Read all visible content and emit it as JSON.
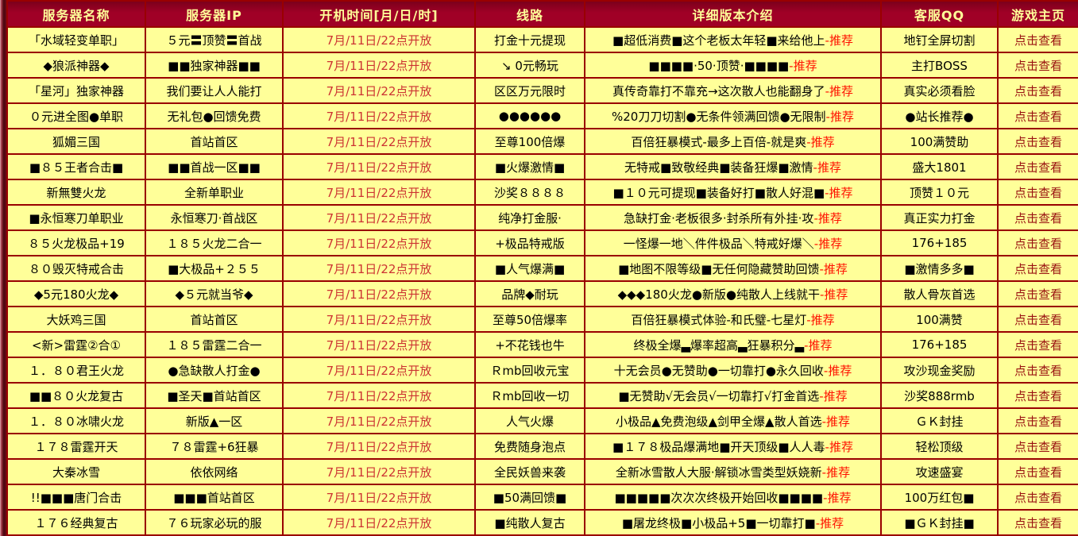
{
  "colors": {
    "header_bg": "#a00026",
    "header_text": "#ffff99",
    "cell_bg": "#ffff99",
    "border": "#990000",
    "time_text": "#cc3333",
    "recommend_tag": "#ff1100",
    "homepage_link": "#991111",
    "body_text": "#000000"
  },
  "table": {
    "columns": [
      "服务器名称",
      "服务器IP",
      "开机时间[月/日/时]",
      "线路",
      "详细版本介绍",
      "客服QQ",
      "游戏主页"
    ],
    "rows": [
      {
        "name": "「水域轻变单职」",
        "ip": "５元〓顶赞〓首战",
        "time": "7月/11日/22点开放",
        "line": "打金十元提现",
        "detail": "■超低消费■这个老板太年轻■来给他上",
        "tag": "-推荐",
        "qq": "地钉全屏切割",
        "home": "点击查看"
      },
      {
        "name": "◆狼派神器◆",
        "ip": "■■独家神器■■",
        "time": "7月/11日/22点开放",
        "line": "↘ 0元畅玩",
        "detail": "■■■■·50·顶赞·■■■■",
        "tag": "-推荐",
        "qq": "主打BOSS",
        "home": "点击查看"
      },
      {
        "name": "「星河」独家神器",
        "ip": "我们要让人人能打",
        "time": "7月/11日/22点开放",
        "line": "区区万元限时",
        "detail": "真传奇靠打不靠充→这次散人也能翻身了",
        "tag": "-推荐",
        "qq": "真实必须看脸",
        "home": "点击查看"
      },
      {
        "name": "０元进全图●单职",
        "ip": "无礼包●回馈免费",
        "time": "7月/11日/22点开放",
        "line": "●●●●●●",
        "detail": "%20刀刀切割●无条件领满回馈●无限制",
        "tag": "-推荐",
        "qq": "●站长推荐●",
        "home": "点击查看"
      },
      {
        "name": "狐媚三国",
        "ip": "首站首区",
        "time": "7月/11日/22点开放",
        "line": "至尊100倍爆",
        "detail": "百倍狂暴模式-最多上百倍-就是爽",
        "tag": "-推荐",
        "qq": "100满赞助",
        "home": "点击查看"
      },
      {
        "name": "■８５王者合击■",
        "ip": "■■首战一区■■",
        "time": "7月/11日/22点开放",
        "line": "■火爆激情■",
        "detail": "无特戒■致敬经典■装备狂爆■激情",
        "tag": "-推荐",
        "qq": "盛大1801",
        "home": "点击查看"
      },
      {
        "name": "新無雙火龙",
        "ip": "全新单职业",
        "time": "7月/11日/22点开放",
        "line": "沙奖８８８８",
        "detail": "■１０元可提现■装备好打■散人好混■",
        "tag": "-推荐",
        "qq": "顶赞１０元",
        "home": "点击查看"
      },
      {
        "name": "■永恒寒刀单职业",
        "ip": "永恒寒刀·首战区",
        "time": "7月/11日/22点开放",
        "line": "纯净打金服·",
        "detail": "急缺打金·老板很多·封杀所有外挂·攻",
        "tag": "-推荐",
        "qq": "真正实力打金",
        "home": "点击查看"
      },
      {
        "name": "８５火龙极品+19",
        "ip": "１８５火龙二合一",
        "time": "7月/11日/22点开放",
        "line": "+极品特戒版",
        "detail": "一怪爆一地＼件件极品＼特戒好爆＼",
        "tag": "-推荐",
        "qq": "176+185",
        "home": "点击查看"
      },
      {
        "name": "８０毁灭特戒合击",
        "ip": "■大极品+２５５",
        "time": "7月/11日/22点开放",
        "line": "■人气爆满■",
        "detail": "■地图不限等级■无任何隐藏赞助回馈",
        "tag": "-推荐",
        "qq": "■激情多多■",
        "home": "点击查看"
      },
      {
        "name": "◆5元180火龙◆",
        "ip": "◆５元就当爷◆",
        "time": "7月/11日/22点开放",
        "line": "品牌◆耐玩",
        "detail": "◆◆◆180火龙●新版●纯散人上线就干",
        "tag": "-推荐",
        "qq": "散人骨灰首选",
        "home": "点击查看"
      },
      {
        "name": "大妖鸡三国",
        "ip": "首站首区",
        "time": "7月/11日/22点开放",
        "line": "至尊50倍爆率",
        "detail": "百倍狂暴模式体验-和氏璧-七星灯",
        "tag": "-推荐",
        "qq": "100满赞",
        "home": "点击查看"
      },
      {
        "name": "<新>雷霆②合①",
        "ip": "１８５雷霆二合一",
        "time": "7月/11日/22点开放",
        "line": "+不花钱也牛",
        "detail": "终极全爆▃爆率超高▃狂暴积分▃",
        "tag": "-推荐",
        "qq": "176+185",
        "home": "点击查看"
      },
      {
        "name": "１．８０君王火龙",
        "ip": "●急缺散人打金●",
        "time": "7月/11日/22点开放",
        "line": "Ｒmb回收元宝",
        "detail": "十无会员●无赞助●一切靠打●永久回收",
        "tag": "-推荐",
        "qq": "攻沙现金奖励",
        "home": "点击查看"
      },
      {
        "name": "■■８０火龙复古",
        "ip": "■圣天■首站首区",
        "time": "7月/11日/22点开放",
        "line": "Ｒmb回收一切",
        "detail": "■无赞助√无会员√一切靠打√打金首选",
        "tag": "-推荐",
        "qq": "沙奖888rmb",
        "home": "点击查看"
      },
      {
        "name": "１．８０冰啸火龙",
        "ip": "新版▲一区",
        "time": "7月/11日/22点开放",
        "line": "人气火爆",
        "detail": "小极品▲免费泡级▲剑甲全爆▲散人首选",
        "tag": "-推荐",
        "qq": "ＧＫ封挂",
        "home": "点击查看"
      },
      {
        "name": "１７８雷霆开天",
        "ip": "７８雷霆+6狂暴",
        "time": "7月/11日/22点开放",
        "line": "免费随身泡点",
        "detail": "■１７８极品爆满地■开天顶级■人人毒",
        "tag": "-推荐",
        "qq": "轻松顶级",
        "home": "点击查看"
      },
      {
        "name": "大秦冰雪",
        "ip": "依依网络",
        "time": "7月/11日/22点开放",
        "line": "全民妖兽来袭",
        "detail": "全新冰雪散人大服·解锁冰雪类型妖娆新",
        "tag": "-推荐",
        "qq": "攻速盛宴",
        "home": "点击查看"
      },
      {
        "name": "!!■■■唐门合击",
        "ip": "■■■首站首区",
        "time": "7月/11日/22点开放",
        "line": "■50满回馈■",
        "detail": "■■■■■次次次终极开始回收■■■■",
        "tag": "-推荐",
        "qq": "100万红包■",
        "home": "点击查看"
      },
      {
        "name": "１７６经典复古",
        "ip": "７６玩家必玩的服",
        "time": "7月/11日/22点开放",
        "line": "■纯散人复古",
        "detail": "■屠龙终极■小极品+5■一切靠打■",
        "tag": "-推荐",
        "qq": "■ＧＫ封挂■",
        "home": "点击查看"
      }
    ]
  }
}
